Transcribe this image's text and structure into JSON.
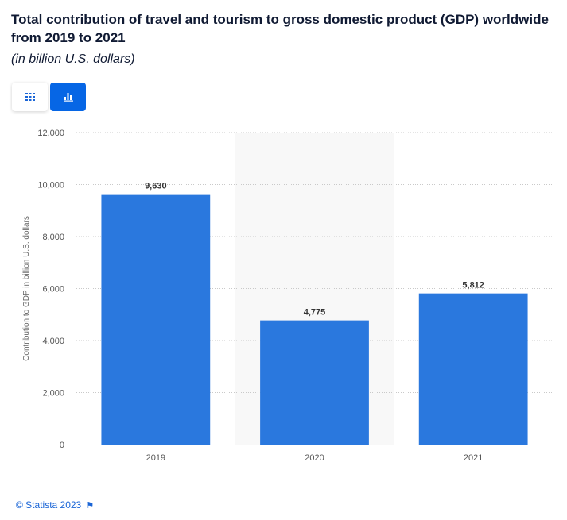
{
  "header": {
    "title": "Total contribution of travel and tourism to gross domestic product (GDP) worldwide from 2019 to 2021",
    "subtitle": "(in billion U.S. dollars)"
  },
  "view_toggle": {
    "table_icon": "grid-icon",
    "chart_icon": "bar-chart-icon",
    "active": "chart",
    "accent": "#0666e5"
  },
  "chart_data": {
    "type": "bar",
    "categories": [
      "2019",
      "2020",
      "2021"
    ],
    "values": [
      9630,
      4775,
      5812
    ],
    "value_labels": [
      "9,630",
      "4,775",
      "5,812"
    ],
    "ylabel": "Contribution to GDP in billion U.S. dollars",
    "xlabel": "",
    "ylim": [
      0,
      12000
    ],
    "yticks": [
      0,
      2000,
      4000,
      6000,
      8000,
      10000,
      12000
    ],
    "ytick_labels": [
      "0",
      "2,000",
      "4,000",
      "6,000",
      "8,000",
      "10,000",
      "12,000"
    ],
    "highlighted_category": "2020",
    "grid": true,
    "bar_color": "#2a78de"
  },
  "footer": {
    "credit": "© Statista 2023",
    "flag_icon": "flag-icon"
  }
}
